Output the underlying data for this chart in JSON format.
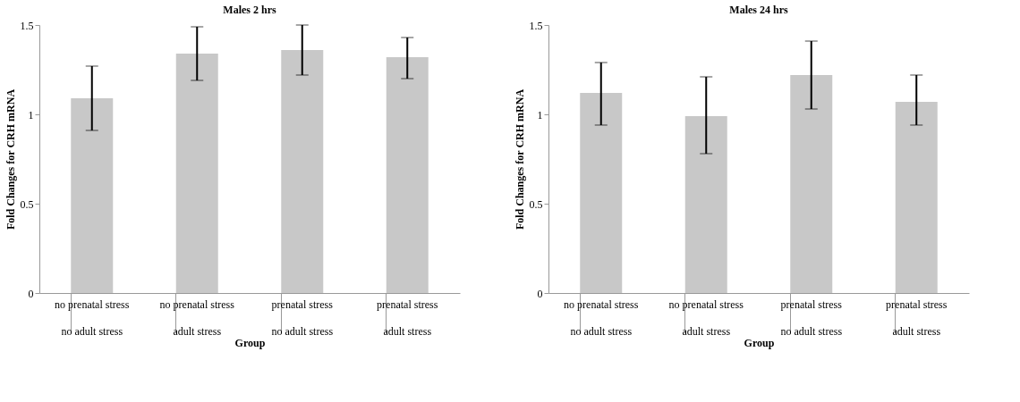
{
  "chart_data": [
    {
      "type": "bar",
      "title": "Males 2 hrs",
      "xlabel": "Group",
      "ylabel": "Fold Changes for CRH mRNA",
      "categories": [
        "no prenatal stress\nno adult stress",
        "no prenatal stress\nadult stress",
        "prenatal stress\nno adult stress",
        "prenatal stress\nadult stress"
      ],
      "values": [
        1.09,
        1.34,
        1.36,
        1.32
      ],
      "errors": [
        [
          0.91,
          1.27
        ],
        [
          1.19,
          1.49
        ],
        [
          1.22,
          1.5
        ],
        [
          1.2,
          1.43
        ]
      ],
      "color": "#c8c8c8",
      "ylim": [
        0,
        1.5
      ],
      "yticks": [
        0,
        0.5,
        1,
        1.5
      ],
      "grid": false
    },
    {
      "type": "bar",
      "title": "Males 24 hrs",
      "xlabel": "Group",
      "ylabel": "Fold Changes for CRH mRNA",
      "categories": [
        "no prenatal stress\nno adult stress",
        "no prenatal stress\nadult stress",
        "prenatal stress\nno adult stress",
        "prenatal stress\nadult stress"
      ],
      "values": [
        1.12,
        0.99,
        1.22,
        1.07
      ],
      "errors": [
        [
          0.94,
          1.29
        ],
        [
          0.78,
          1.21
        ],
        [
          1.03,
          1.41
        ],
        [
          0.94,
          1.22
        ]
      ],
      "color": "#c8c8c8",
      "ylim": [
        0,
        1.5
      ],
      "yticks": [
        0,
        0.5,
        1,
        1.5
      ],
      "grid": false
    }
  ]
}
